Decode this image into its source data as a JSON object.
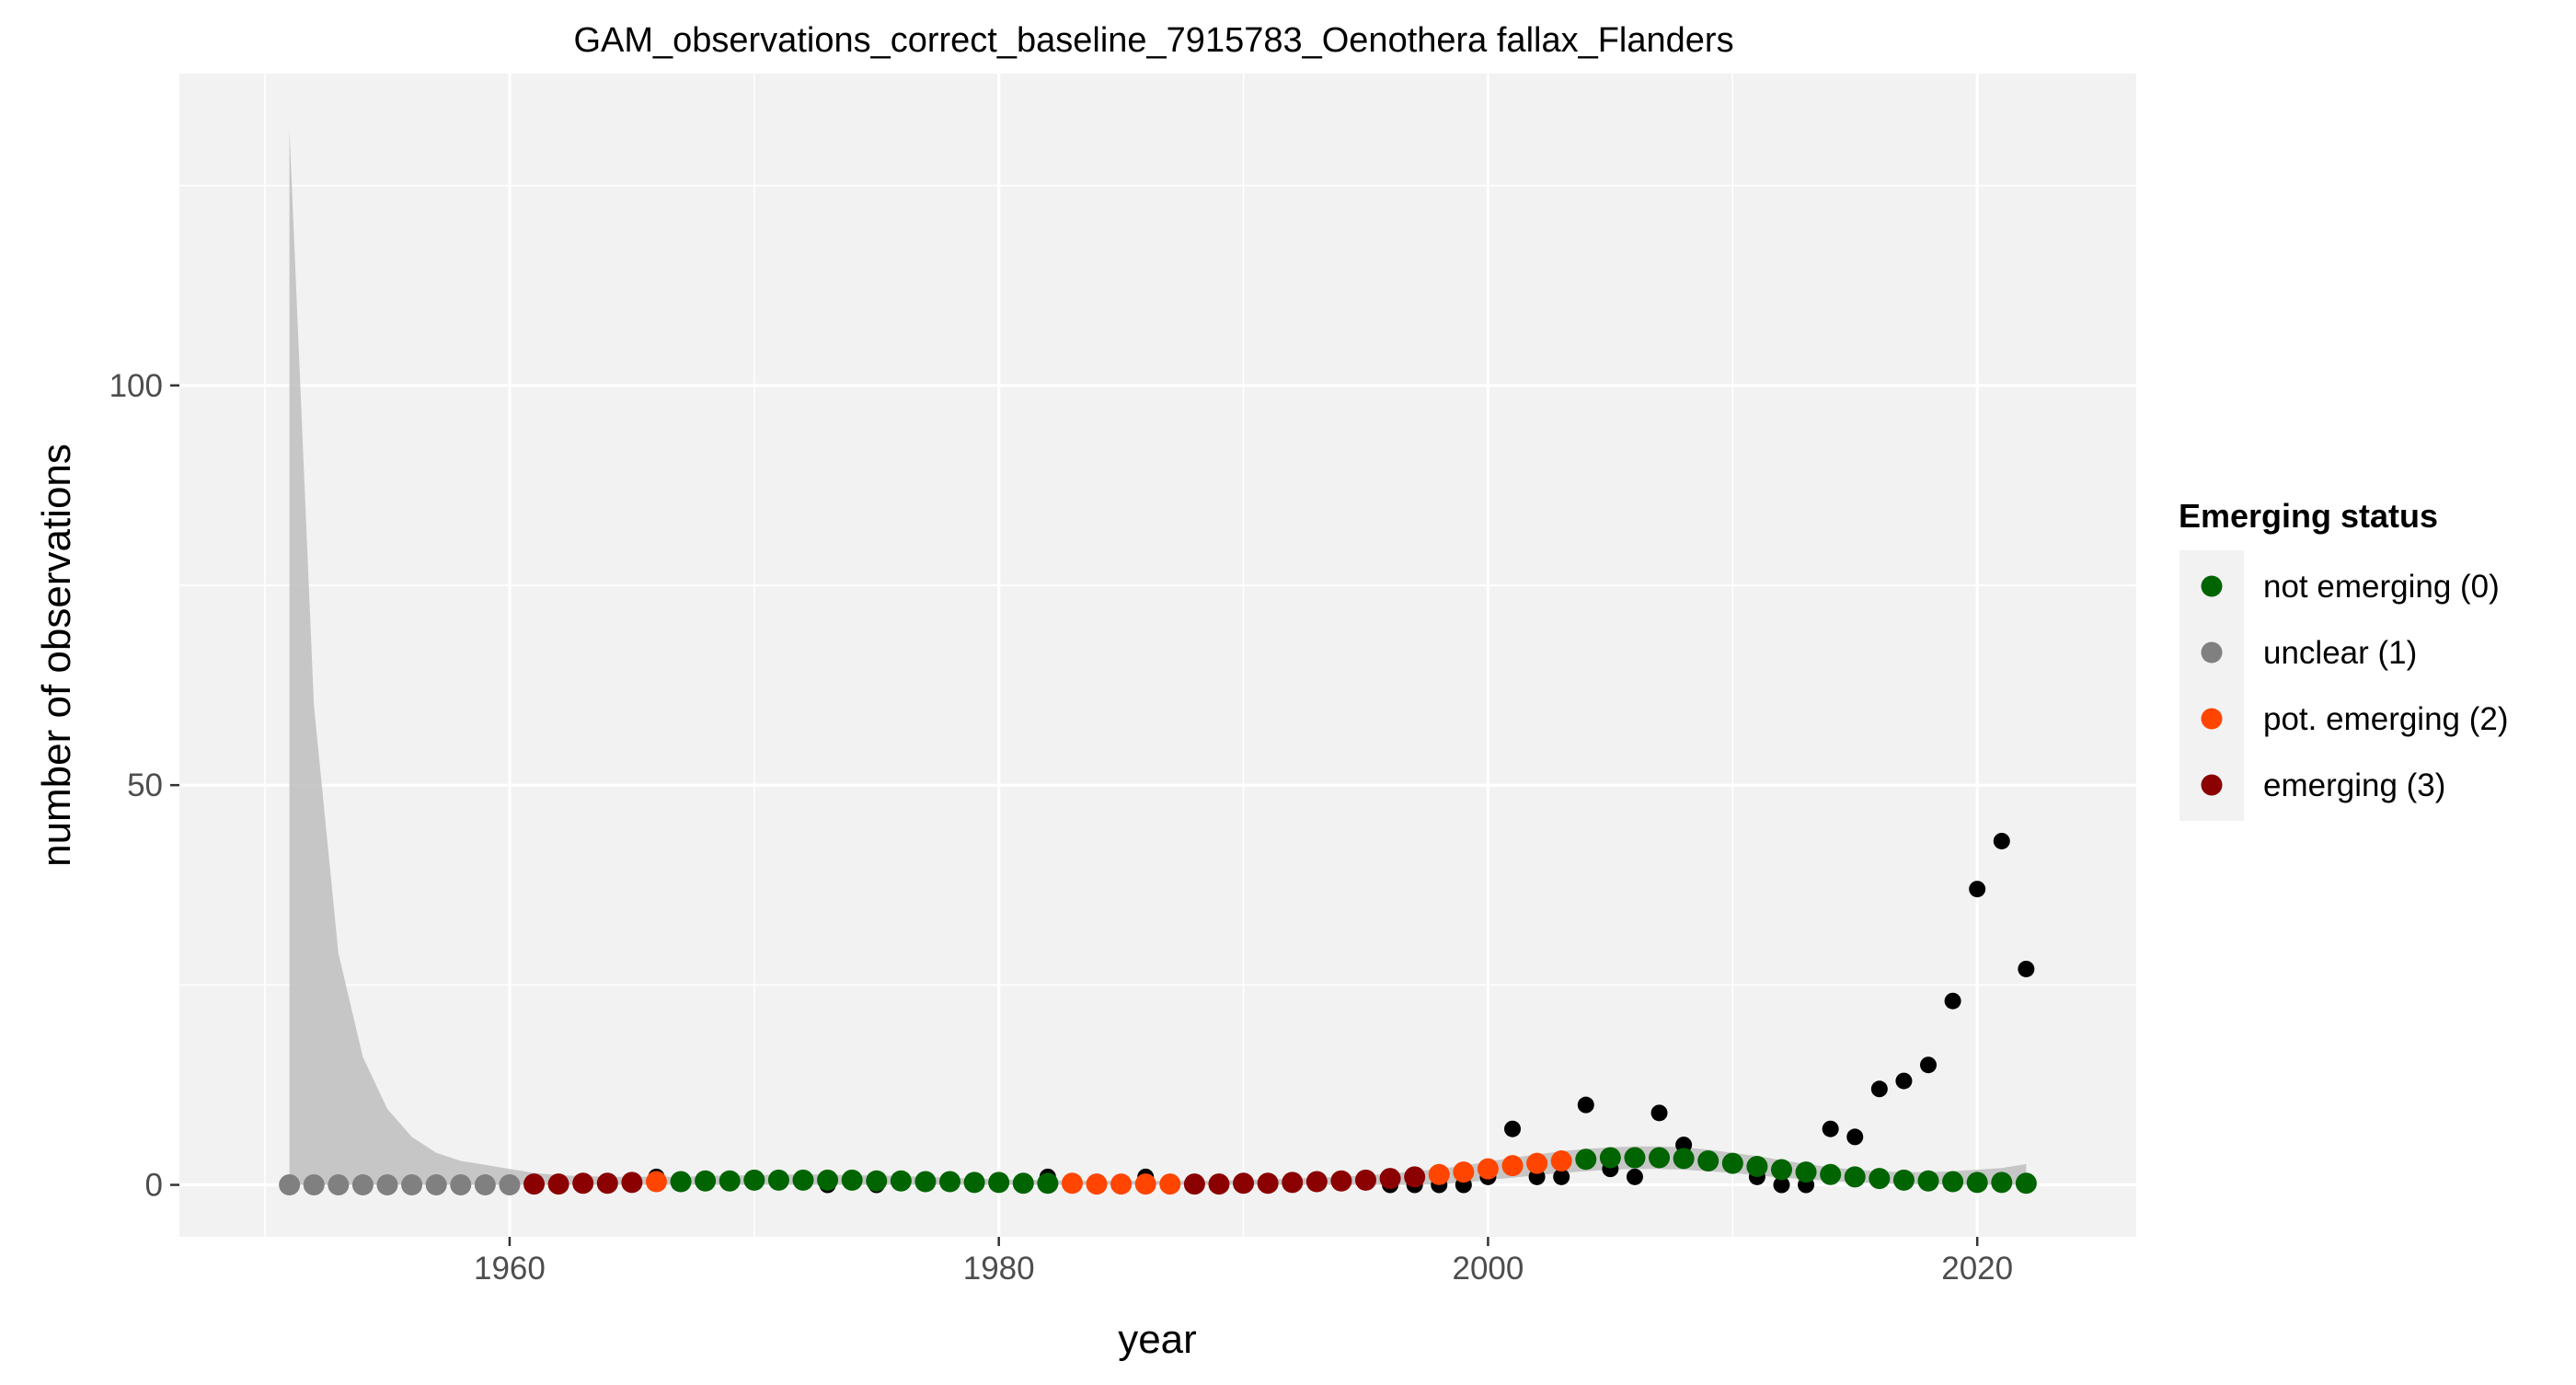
{
  "chart_data": {
    "type": "scatter",
    "title": "GAM_observations_correct_baseline_7915783_Oenothera fallax_Flanders",
    "xlabel": "year",
    "ylabel": "number of observations",
    "xlim": [
      1946.5,
      2026.5
    ],
    "ylim": [
      -6.5,
      139
    ],
    "x_ticks": [
      1960,
      1980,
      2000,
      2020
    ],
    "y_ticks": [
      0,
      50,
      100
    ],
    "grid": true,
    "legend": {
      "title": "Emerging status",
      "placement": "right",
      "entries": [
        {
          "label": "not emerging (0)",
          "color": "#006400"
        },
        {
          "label": "unclear (1)",
          "color": "#808080"
        },
        {
          "label": "pot. emerging (2)",
          "color": "#FF4500"
        },
        {
          "label": "emerging (3)",
          "color": "#8B0000"
        }
      ]
    },
    "colors": {
      "panel_background": "#F2F2F2",
      "grid": "#FFFFFF",
      "ribbon": "#BEBEBE",
      "observed_point": "#000000"
    },
    "observations": {
      "x": [
        1966,
        1973,
        1975,
        1982,
        1986,
        1996,
        1997,
        1998,
        1999,
        2000,
        2001,
        2002,
        2003,
        2004,
        2005,
        2006,
        2007,
        2008,
        2011,
        2012,
        2013,
        2014,
        2015,
        2016,
        2017,
        2018,
        2019,
        2020,
        2021,
        2022
      ],
      "y": [
        1,
        0,
        0,
        1,
        1,
        0,
        0,
        0,
        0,
        1,
        7,
        1,
        1,
        10,
        2,
        1,
        9,
        5,
        1,
        0,
        0,
        7,
        6,
        12,
        13,
        15,
        23,
        37,
        43,
        27
      ]
    },
    "gam_fit": {
      "x": [
        1951,
        1952,
        1953,
        1954,
        1955,
        1956,
        1957,
        1958,
        1959,
        1960,
        1961,
        1962,
        1963,
        1964,
        1965,
        1966,
        1967,
        1968,
        1969,
        1970,
        1971,
        1972,
        1973,
        1974,
        1975,
        1976,
        1977,
        1978,
        1979,
        1980,
        1981,
        1982,
        1983,
        1984,
        1985,
        1986,
        1987,
        1988,
        1989,
        1990,
        1991,
        1992,
        1993,
        1994,
        1995,
        1996,
        1997,
        1998,
        1999,
        2000,
        2001,
        2002,
        2003,
        2004,
        2005,
        2006,
        2007,
        2008,
        2009,
        2010,
        2011,
        2012,
        2013,
        2014,
        2015,
        2016,
        2017,
        2018,
        2019,
        2020,
        2021,
        2022
      ],
      "y": [
        0,
        0,
        0,
        0,
        0,
        0,
        0,
        0,
        0,
        0,
        0.1,
        0.1,
        0.2,
        0.2,
        0.3,
        0.4,
        0.4,
        0.5,
        0.5,
        0.6,
        0.6,
        0.6,
        0.6,
        0.6,
        0.5,
        0.5,
        0.4,
        0.4,
        0.3,
        0.3,
        0.2,
        0.2,
        0.2,
        0.1,
        0.1,
        0.1,
        0.1,
        0.1,
        0.1,
        0.2,
        0.2,
        0.3,
        0.4,
        0.5,
        0.6,
        0.8,
        1.0,
        1.3,
        1.6,
        2.0,
        2.4,
        2.7,
        3.0,
        3.2,
        3.4,
        3.4,
        3.4,
        3.3,
        3.0,
        2.7,
        2.3,
        1.9,
        1.6,
        1.3,
        1.0,
        0.8,
        0.6,
        0.5,
        0.4,
        0.3,
        0.3,
        0.2
      ],
      "status": [
        "unclear (1)",
        "unclear (1)",
        "unclear (1)",
        "unclear (1)",
        "unclear (1)",
        "unclear (1)",
        "unclear (1)",
        "unclear (1)",
        "unclear (1)",
        "unclear (1)",
        "emerging (3)",
        "emerging (3)",
        "emerging (3)",
        "emerging (3)",
        "emerging (3)",
        "pot. emerging (2)",
        "not emerging (0)",
        "not emerging (0)",
        "not emerging (0)",
        "not emerging (0)",
        "not emerging (0)",
        "not emerging (0)",
        "not emerging (0)",
        "not emerging (0)",
        "not emerging (0)",
        "not emerging (0)",
        "not emerging (0)",
        "not emerging (0)",
        "not emerging (0)",
        "not emerging (0)",
        "not emerging (0)",
        "not emerging (0)",
        "pot. emerging (2)",
        "pot. emerging (2)",
        "pot. emerging (2)",
        "pot. emerging (2)",
        "pot. emerging (2)",
        "emerging (3)",
        "emerging (3)",
        "emerging (3)",
        "emerging (3)",
        "emerging (3)",
        "emerging (3)",
        "emerging (3)",
        "emerging (3)",
        "emerging (3)",
        "emerging (3)",
        "pot. emerging (2)",
        "pot. emerging (2)",
        "pot. emerging (2)",
        "pot. emerging (2)",
        "pot. emerging (2)",
        "pot. emerging (2)",
        "not emerging (0)",
        "not emerging (0)",
        "not emerging (0)",
        "not emerging (0)",
        "not emerging (0)",
        "not emerging (0)",
        "not emerging (0)",
        "not emerging (0)",
        "not emerging (0)",
        "not emerging (0)",
        "not emerging (0)",
        "not emerging (0)",
        "not emerging (0)",
        "not emerging (0)",
        "not emerging (0)",
        "not emerging (0)",
        "not emerging (0)",
        "not emerging (0)",
        "not emerging (0)"
      ],
      "ci_lower": [
        0,
        0,
        0,
        0,
        0,
        0,
        0,
        0,
        0,
        0,
        0,
        0,
        0,
        0,
        0,
        0,
        0,
        0,
        0,
        0,
        0,
        0,
        0,
        0,
        0,
        0,
        0,
        0,
        0,
        0,
        0,
        0,
        0,
        0,
        0,
        0,
        0,
        0,
        0,
        0,
        0,
        0,
        0,
        0,
        0,
        0,
        0,
        0.1,
        0.3,
        0.6,
        0.9,
        1.2,
        1.5,
        1.7,
        1.9,
        2.0,
        2.0,
        1.9,
        1.7,
        1.5,
        1.2,
        0.9,
        0.7,
        0.5,
        0.3,
        0.2,
        0.1,
        0.1,
        0,
        0,
        0,
        0
      ],
      "ci_upper": [
        132,
        60,
        29,
        16,
        9.5,
        6,
        4,
        3,
        2.5,
        2,
        1.5,
        1.2,
        1.1,
        1,
        1,
        1,
        1,
        1.1,
        1.2,
        1.2,
        1.3,
        1.3,
        1.3,
        1.2,
        1.2,
        1.1,
        1,
        0.9,
        0.8,
        0.7,
        0.6,
        0.6,
        0.5,
        0.5,
        0.5,
        0.5,
        0.5,
        0.5,
        0.5,
        0.6,
        0.7,
        0.8,
        0.9,
        1.0,
        1.2,
        1.4,
        1.7,
        2.0,
        2.4,
        2.9,
        3.4,
        3.8,
        4.2,
        4.5,
        4.7,
        4.8,
        4.8,
        4.7,
        4.4,
        4.0,
        3.6,
        3.1,
        2.6,
        2.2,
        1.9,
        1.7,
        1.6,
        1.6,
        1.7,
        1.9,
        2.1,
        2.6
      ]
    }
  }
}
